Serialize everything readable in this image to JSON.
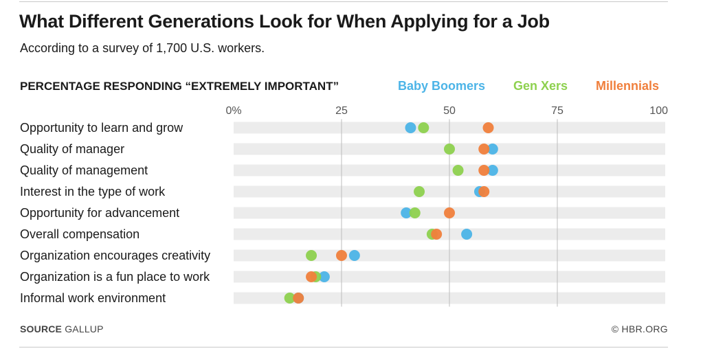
{
  "title": "What Different Generations Look for When Applying for a Job",
  "subtitle": "According to a survey of 1,700 U.S. workers.",
  "source_label": "SOURCE",
  "source_value": "GALLUP",
  "credit": "© HBR.ORG",
  "colors": {
    "baby_boomers": "#4cb4e7",
    "gen_xers": "#8ed14f",
    "millennials": "#f07f3c",
    "row_band": "#ececec",
    "gridline": "#bdbdbd"
  },
  "chart_data": {
    "type": "scatter",
    "orientation": "horizontal-dot-plot",
    "subhead": "PERCENTAGE RESPONDING “EXTREMELY IMPORTANT”",
    "xlim": [
      0,
      100
    ],
    "ticks": [
      {
        "value": 0,
        "label": "0%"
      },
      {
        "value": 25,
        "label": "25"
      },
      {
        "value": 50,
        "label": "50"
      },
      {
        "value": 75,
        "label": "75"
      },
      {
        "value": 100,
        "label": "100"
      }
    ],
    "categories": [
      "Opportunity to learn and grow",
      "Quality of manager",
      "Quality of management",
      "Interest in the type of work",
      "Opportunity for advancement",
      "Overall compensation",
      "Organization encourages creativity",
      "Organization is a fun place to work",
      "Informal work environment"
    ],
    "series": [
      {
        "key": "baby_boomers",
        "name": "Baby Boomers",
        "values": [
          41,
          60,
          60,
          57,
          40,
          54,
          28,
          21,
          15
        ]
      },
      {
        "key": "gen_xers",
        "name": "Gen Xers",
        "values": [
          44,
          50,
          52,
          43,
          42,
          46,
          18,
          19,
          13
        ]
      },
      {
        "key": "millennials",
        "name": "Millennials",
        "values": [
          59,
          58,
          58,
          58,
          50,
          47,
          25,
          18,
          15
        ]
      }
    ]
  }
}
